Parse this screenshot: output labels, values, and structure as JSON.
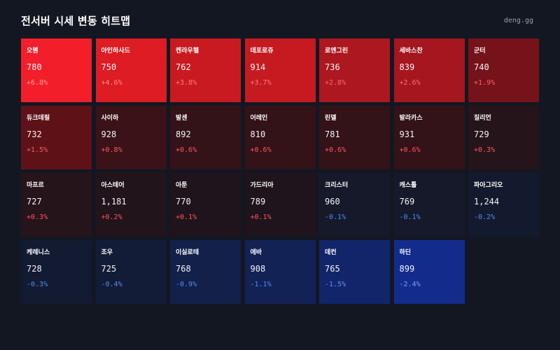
{
  "header": {
    "title": "전서버 시세 변동 히트맵",
    "brand": "deng.gg"
  },
  "colors": {
    "page_background": "#131722",
    "up_text": "#ff5560",
    "down_text": "#4f8df0",
    "up_text_on_bright": "#ff9a9a"
  },
  "tiles": [
    {
      "name": "오웬",
      "price": "780",
      "change": "+6.8%",
      "bg": "#f21f2a",
      "change_color": "#ff9a9a"
    },
    {
      "name": "아인하사드",
      "price": "750",
      "change": "+4.6%",
      "bg": "#dd1c24",
      "change_color": "#ff8b8b"
    },
    {
      "name": "켄라우헬",
      "price": "762",
      "change": "+3.8%",
      "bg": "#c91a21",
      "change_color": "#ff7a7c"
    },
    {
      "name": "데포로쥬",
      "price": "914",
      "change": "+3.7%",
      "bg": "#c61a21",
      "change_color": "#ff7a7c"
    },
    {
      "name": "로엔그린",
      "price": "736",
      "change": "+2.8%",
      "bg": "#ad171f",
      "change_color": "#ff6b70"
    },
    {
      "name": "세바스찬",
      "price": "839",
      "change": "+2.6%",
      "bg": "#a5161e",
      "change_color": "#ff6b70"
    },
    {
      "name": "군터",
      "price": "740",
      "change": "+1.9%",
      "bg": "#761219",
      "change_color": "#ff5f66"
    },
    {
      "name": "듀크데필",
      "price": "732",
      "change": "+1.5%",
      "bg": "#5e1218",
      "change_color": "#ff5a62"
    },
    {
      "name": "사이하",
      "price": "928",
      "change": "+0.8%",
      "bg": "#3a1218",
      "change_color": "#ff5560"
    },
    {
      "name": "발센",
      "price": "892",
      "change": "+0.6%",
      "bg": "#331218",
      "change_color": "#ff5560"
    },
    {
      "name": "어레인",
      "price": "810",
      "change": "+0.6%",
      "bg": "#331218",
      "change_color": "#ff5560"
    },
    {
      "name": "린델",
      "price": "781",
      "change": "+0.6%",
      "bg": "#331218",
      "change_color": "#ff5560"
    },
    {
      "name": "발라카스",
      "price": "931",
      "change": "+0.6%",
      "bg": "#331218",
      "change_color": "#ff5560"
    },
    {
      "name": "질리언",
      "price": "729",
      "change": "+0.3%",
      "bg": "#26141b",
      "change_color": "#ff5560"
    },
    {
      "name": "마프르",
      "price": "727",
      "change": "+0.3%",
      "bg": "#26141b",
      "change_color": "#ff5560"
    },
    {
      "name": "아스테어",
      "price": "1,181",
      "change": "+0.2%",
      "bg": "#22141b",
      "change_color": "#ff5560"
    },
    {
      "name": "아툰",
      "price": "770",
      "change": "+0.1%",
      "bg": "#1f141b",
      "change_color": "#ff5560"
    },
    {
      "name": "가드리아",
      "price": "789",
      "change": "+0.1%",
      "bg": "#1f141b",
      "change_color": "#ff5560"
    },
    {
      "name": "크리스터",
      "price": "960",
      "change": "-0.1%",
      "bg": "#15192a",
      "change_color": "#4f8df0"
    },
    {
      "name": "캐스톨",
      "price": "769",
      "change": "-0.1%",
      "bg": "#15192a",
      "change_color": "#4f8df0"
    },
    {
      "name": "파아그리오",
      "price": "1,244",
      "change": "-0.2%",
      "bg": "#141a2d",
      "change_color": "#4f8df0"
    },
    {
      "name": "케레니스",
      "price": "728",
      "change": "-0.3%",
      "bg": "#131b33",
      "change_color": "#4f8df0"
    },
    {
      "name": "조우",
      "price": "725",
      "change": "-0.4%",
      "bg": "#131c37",
      "change_color": "#4f8df0"
    },
    {
      "name": "이실로테",
      "price": "768",
      "change": "-0.9%",
      "bg": "#13204a",
      "change_color": "#4f8df0"
    },
    {
      "name": "에바",
      "price": "908",
      "change": "-1.1%",
      "bg": "#132255",
      "change_color": "#4f8df0"
    },
    {
      "name": "데컨",
      "price": "765",
      "change": "-1.5%",
      "bg": "#13256a",
      "change_color": "#5a95f2"
    },
    {
      "name": "하딘",
      "price": "899",
      "change": "-2.4%",
      "bg": "#132c8c",
      "change_color": "#6fa3f5"
    }
  ]
}
